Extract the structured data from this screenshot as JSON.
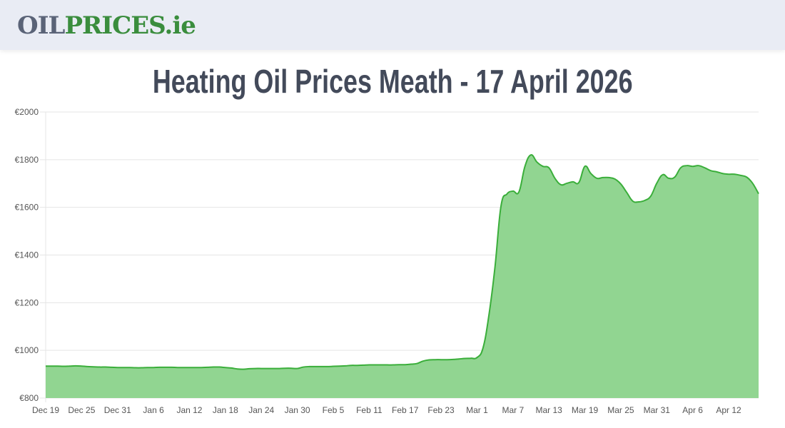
{
  "header": {
    "logo_part1": "OIL",
    "logo_part2": "PRICES.ie"
  },
  "title": "Heating Oil Prices Meath - 17 April 2026",
  "colors": {
    "line": "#3aae3a",
    "fill": "#91d591",
    "grid": "#e5e5e5",
    "logo_grey": "#5a6377",
    "logo_green": "#3a8d3d"
  },
  "chart_data": {
    "type": "area",
    "title": "",
    "xlabel": "",
    "ylabel": "",
    "ylim": [
      800,
      2000
    ],
    "yticks": [
      "€800",
      "€1000",
      "€1200",
      "€1400",
      "€1600",
      "€1800",
      "€2000"
    ],
    "ytick_values": [
      800,
      1000,
      1200,
      1400,
      1600,
      1800,
      2000
    ],
    "xticks": [
      "Dec 19",
      "Dec 25",
      "Dec 31",
      "Jan 6",
      "Jan 12",
      "Jan 18",
      "Jan 24",
      "Jan 30",
      "Feb 5",
      "Feb 11",
      "Feb 17",
      "Feb 23",
      "Mar 1",
      "Mar 7",
      "Mar 13",
      "Mar 19",
      "Mar 25",
      "Mar 31",
      "Apr 6",
      "Apr 12"
    ],
    "grid": true,
    "x": [
      "Dec 19",
      "Dec 20",
      "Dec 21",
      "Dec 22",
      "Dec 23",
      "Dec 24",
      "Dec 25",
      "Dec 26",
      "Dec 27",
      "Dec 28",
      "Dec 29",
      "Dec 30",
      "Dec 31",
      "Jan 1",
      "Jan 2",
      "Jan 3",
      "Jan 4",
      "Jan 5",
      "Jan 6",
      "Jan 7",
      "Jan 8",
      "Jan 9",
      "Jan 10",
      "Jan 11",
      "Jan 12",
      "Jan 13",
      "Jan 14",
      "Jan 15",
      "Jan 16",
      "Jan 17",
      "Jan 18",
      "Jan 19",
      "Jan 20",
      "Jan 21",
      "Jan 22",
      "Jan 23",
      "Jan 24",
      "Jan 25",
      "Jan 26",
      "Jan 27",
      "Jan 28",
      "Jan 29",
      "Jan 30",
      "Jan 31",
      "Feb 1",
      "Feb 2",
      "Feb 3",
      "Feb 4",
      "Feb 5",
      "Feb 6",
      "Feb 7",
      "Feb 8",
      "Feb 9",
      "Feb 10",
      "Feb 11",
      "Feb 12",
      "Feb 13",
      "Feb 14",
      "Feb 15",
      "Feb 16",
      "Feb 17",
      "Feb 18",
      "Feb 19",
      "Feb 20",
      "Feb 21",
      "Feb 22",
      "Feb 23",
      "Feb 24",
      "Feb 25",
      "Feb 26",
      "Feb 27",
      "Feb 28",
      "Mar 1",
      "Mar 2",
      "Mar 3",
      "Mar 4",
      "Mar 5",
      "Mar 6",
      "Mar 7",
      "Mar 8",
      "Mar 9",
      "Mar 10",
      "Mar 11",
      "Mar 12",
      "Mar 13",
      "Mar 14",
      "Mar 15",
      "Mar 16",
      "Mar 17",
      "Mar 18",
      "Mar 19",
      "Mar 20",
      "Mar 21",
      "Mar 22",
      "Mar 23",
      "Mar 24",
      "Mar 25",
      "Mar 26",
      "Mar 27",
      "Mar 28",
      "Mar 29",
      "Mar 30",
      "Mar 31",
      "Apr 1",
      "Apr 2",
      "Apr 3",
      "Apr 4",
      "Apr 5",
      "Apr 6",
      "Apr 7",
      "Apr 8",
      "Apr 9",
      "Apr 10",
      "Apr 11",
      "Apr 12",
      "Apr 13",
      "Apr 14",
      "Apr 15",
      "Apr 16",
      "Apr 17"
    ],
    "series": [
      {
        "values": [
          934,
          934,
          934,
          933,
          934,
          935,
          934,
          932,
          931,
          930,
          930,
          929,
          928,
          928,
          928,
          927,
          927,
          928,
          928,
          929,
          929,
          929,
          928,
          928,
          928,
          928,
          928,
          929,
          930,
          930,
          928,
          926,
          922,
          921,
          923,
          924,
          924,
          924,
          924,
          924,
          925,
          925,
          924,
          930,
          932,
          932,
          932,
          932,
          933,
          934,
          935,
          937,
          937,
          938,
          939,
          939,
          939,
          939,
          939,
          940,
          940,
          942,
          945,
          955,
          960,
          961,
          961,
          961,
          962,
          964,
          966,
          967,
          970,
          1010,
          1150,
          1350,
          1605,
          1656,
          1668,
          1665,
          1772,
          1820,
          1790,
          1772,
          1766,
          1722,
          1695,
          1701,
          1707,
          1704,
          1772,
          1742,
          1722,
          1725,
          1725,
          1719,
          1698,
          1662,
          1626,
          1623,
          1629,
          1647,
          1701,
          1737,
          1722,
          1727,
          1766,
          1775,
          1772,
          1775,
          1766,
          1754,
          1749,
          1742,
          1739,
          1739,
          1734,
          1727,
          1701,
          1657
        ]
      }
    ]
  }
}
